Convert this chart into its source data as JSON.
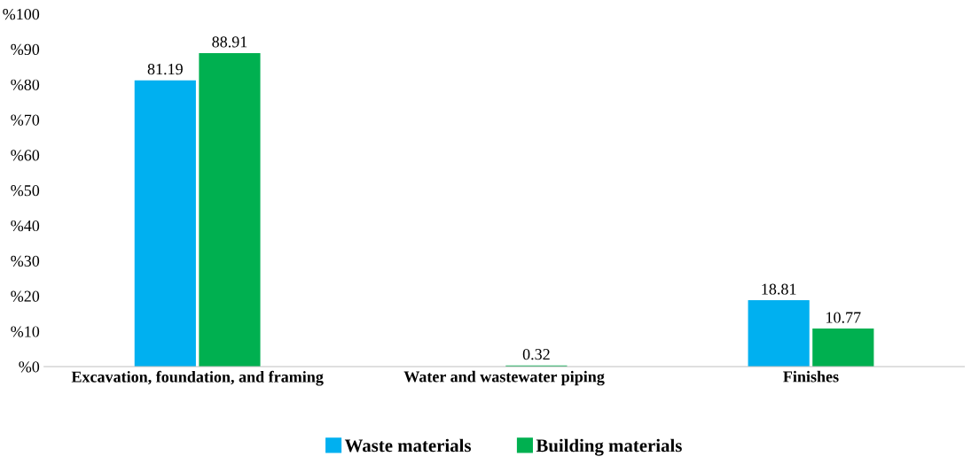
{
  "chart_data": {
    "type": "bar",
    "categories": [
      "Excavation, foundation, and framing",
      "Water and wastewater piping",
      "Finishes"
    ],
    "series": [
      {
        "name": "Waste materials",
        "color": "#00b0f0",
        "values": [
          81.19,
          0,
          18.81
        ],
        "value_labels": [
          "81.19",
          null,
          "18.81"
        ]
      },
      {
        "name": "Building materials",
        "color": "#00b050",
        "values": [
          88.91,
          0.32,
          10.77
        ],
        "value_labels": [
          "88.91",
          "0.32",
          "10.77"
        ]
      }
    ],
    "ylim": [
      0,
      100
    ],
    "yticks": [
      {
        "value": 0,
        "label": "%0"
      },
      {
        "value": 10,
        "label": "%10"
      },
      {
        "value": 20,
        "label": "%20"
      },
      {
        "value": 30,
        "label": "%30"
      },
      {
        "value": 40,
        "label": "%40"
      },
      {
        "value": 50,
        "label": "%50"
      },
      {
        "value": 60,
        "label": "%60"
      },
      {
        "value": 70,
        "label": "%70"
      },
      {
        "value": 80,
        "label": "%80"
      },
      {
        "value": 90,
        "label": "%90"
      },
      {
        "value": 100,
        "label": "%100"
      }
    ],
    "grid": false,
    "legend": "bottom"
  }
}
